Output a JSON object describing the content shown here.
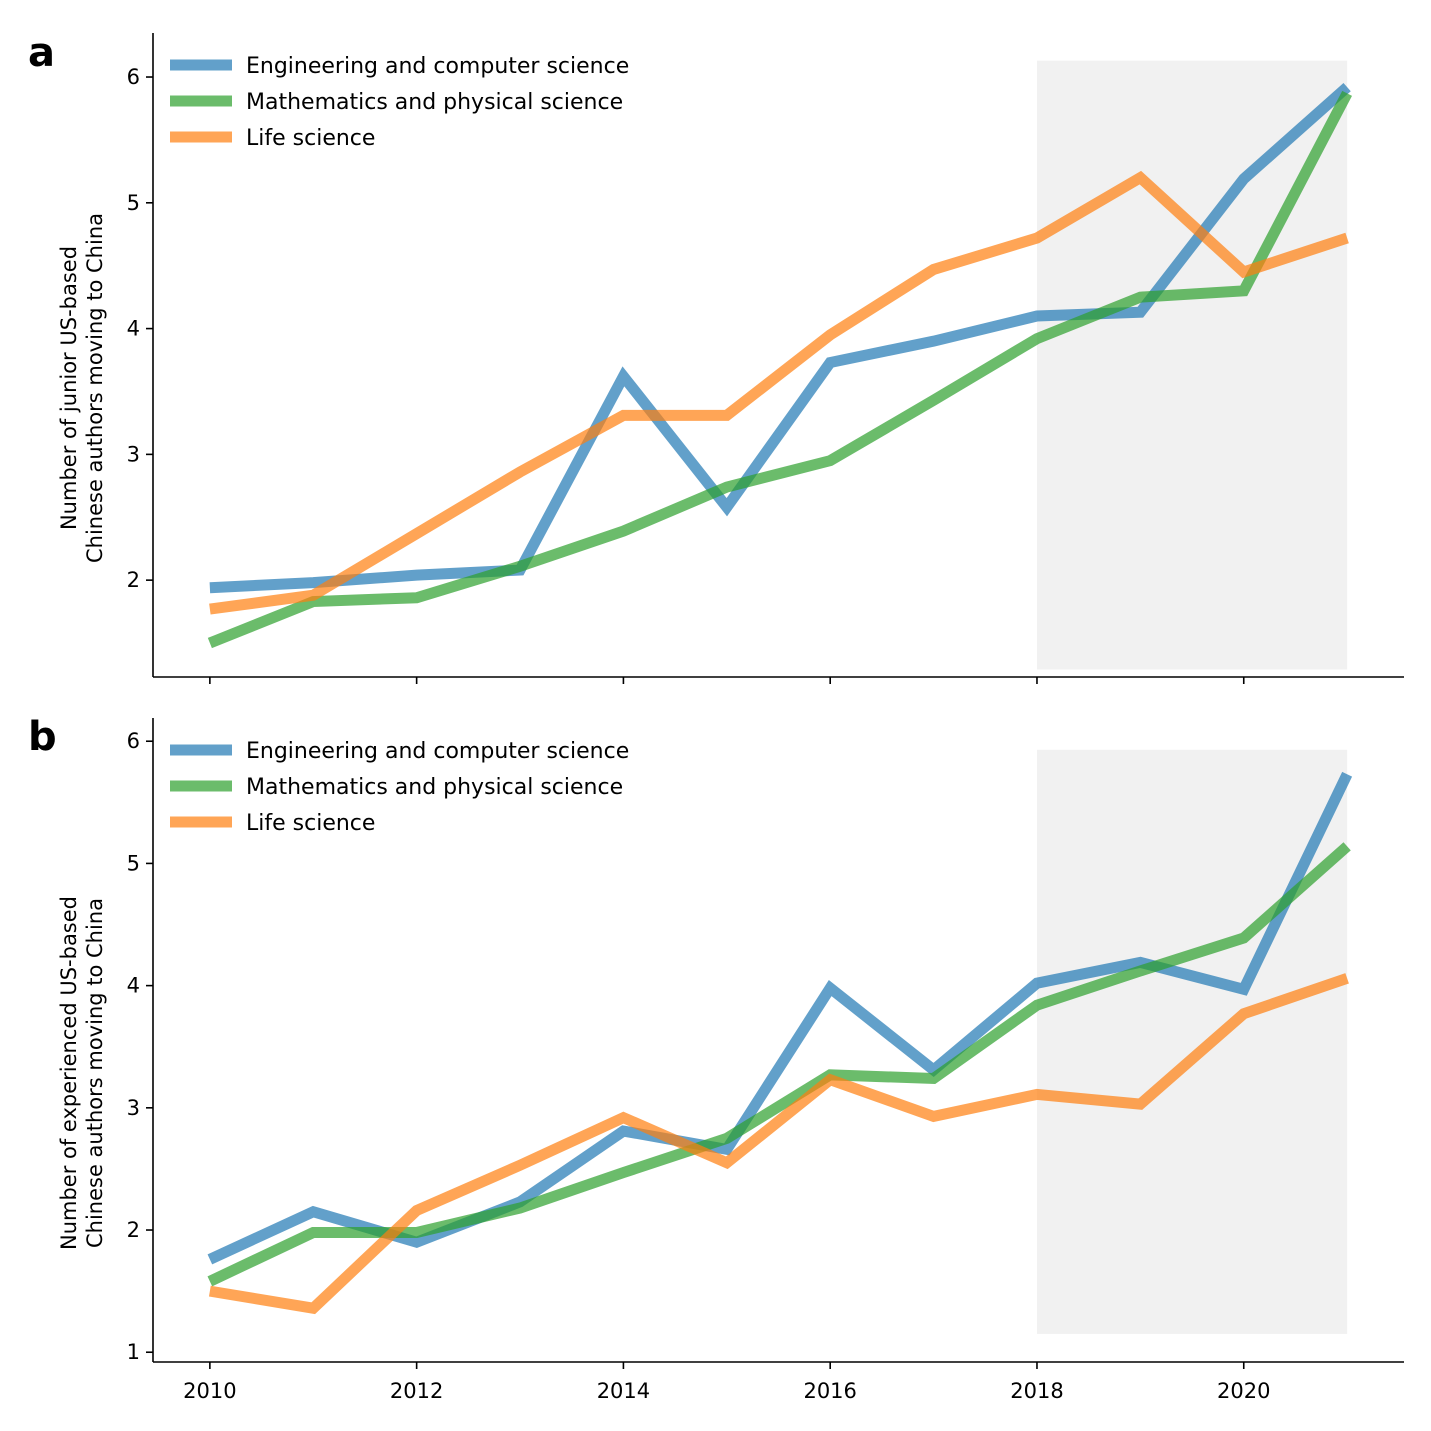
{
  "chart_data": [
    {
      "type": "line",
      "panel_label": "a",
      "ylabel_lines": [
        "Number of junior US-based",
        "Chinese authors moving to China"
      ],
      "x": [
        2010,
        2011,
        2012,
        2013,
        2014,
        2015,
        2016,
        2017,
        2018,
        2019,
        2020,
        2021
      ],
      "xticks": [
        2010,
        2012,
        2014,
        2016,
        2018,
        2020
      ],
      "show_xtick_labels": false,
      "yticks": [
        2,
        3,
        4,
        5,
        6
      ],
      "xlim": [
        2009.45,
        2021.55
      ],
      "ylim": [
        1.23,
        6.35
      ],
      "shaded_region": {
        "x": [
          2018,
          2021
        ],
        "y": [
          1.29,
          6.13
        ],
        "color": "#f1f1f1"
      },
      "legend_position": "top-left",
      "series": [
        {
          "name": "Engineering and computer science",
          "color": "#1f77b4",
          "values": [
            1.94,
            1.98,
            2.04,
            2.08,
            3.62,
            2.58,
            3.73,
            3.9,
            4.1,
            4.13,
            5.19,
            5.92
          ]
        },
        {
          "name": "Mathematics and physical science",
          "color": "#2ca02c",
          "values": [
            1.5,
            1.83,
            1.86,
            2.11,
            2.39,
            2.74,
            2.95,
            3.43,
            3.92,
            4.25,
            4.3,
            5.87
          ]
        },
        {
          "name": "Life science",
          "color": "#ff7f0e",
          "values": [
            1.77,
            1.88,
            2.37,
            2.86,
            3.31,
            3.31,
            3.95,
            4.47,
            4.72,
            5.2,
            4.45,
            4.72
          ]
        }
      ]
    },
    {
      "type": "line",
      "panel_label": "b",
      "ylabel_lines": [
        "Number of experienced US-based",
        "Chinese authors moving to China"
      ],
      "x": [
        2010,
        2011,
        2012,
        2013,
        2014,
        2015,
        2016,
        2017,
        2018,
        2019,
        2020,
        2021
      ],
      "xticks": [
        2010,
        2012,
        2014,
        2016,
        2018,
        2020
      ],
      "show_xtick_labels": true,
      "yticks": [
        1,
        2,
        3,
        4,
        5,
        6
      ],
      "xlim": [
        2009.45,
        2021.55
      ],
      "ylim": [
        0.92,
        6.19
      ],
      "shaded_region": {
        "x": [
          2018,
          2021
        ],
        "y": [
          1.15,
          5.93
        ],
        "color": "#f1f1f1"
      },
      "legend_position": "top-left",
      "series": [
        {
          "name": "Engineering and computer science",
          "color": "#1f77b4",
          "values": [
            1.76,
            2.15,
            1.9,
            2.23,
            2.81,
            2.66,
            3.98,
            3.31,
            4.02,
            4.19,
            3.97,
            5.73
          ]
        },
        {
          "name": "Mathematics and physical science",
          "color": "#2ca02c",
          "values": [
            1.58,
            1.98,
            1.98,
            2.18,
            2.47,
            2.75,
            3.27,
            3.24,
            3.84,
            4.12,
            4.39,
            5.14
          ]
        },
        {
          "name": "Life science",
          "color": "#ff7f0e",
          "values": [
            1.5,
            1.36,
            2.16,
            2.53,
            2.92,
            2.55,
            3.23,
            2.93,
            3.11,
            3.03,
            3.77,
            4.06
          ]
        }
      ]
    }
  ]
}
